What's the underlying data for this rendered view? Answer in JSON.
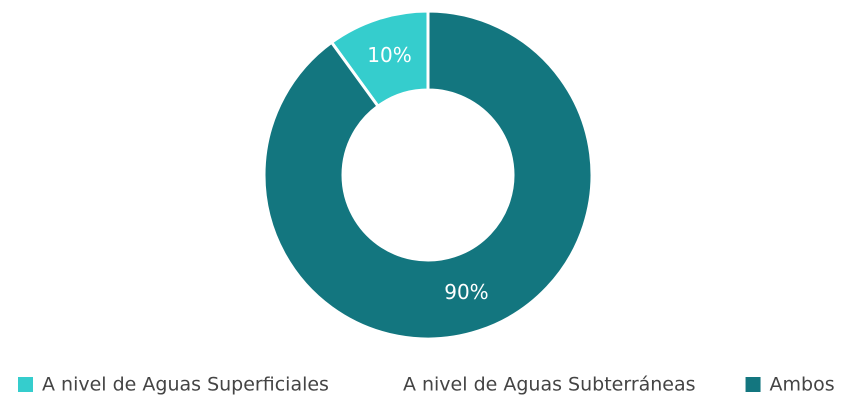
{
  "chart_data": {
    "type": "donut",
    "categories": [
      "A nivel de Aguas Superficiales",
      "A nivel de Aguas Subterráneas",
      "Ambos"
    ],
    "values": [
      10,
      0,
      90
    ],
    "value_labels": [
      "10%",
      null,
      "90%"
    ],
    "colors": [
      "#35cdcd",
      "#ffffff",
      "#13767f"
    ],
    "legend": "bottom"
  }
}
